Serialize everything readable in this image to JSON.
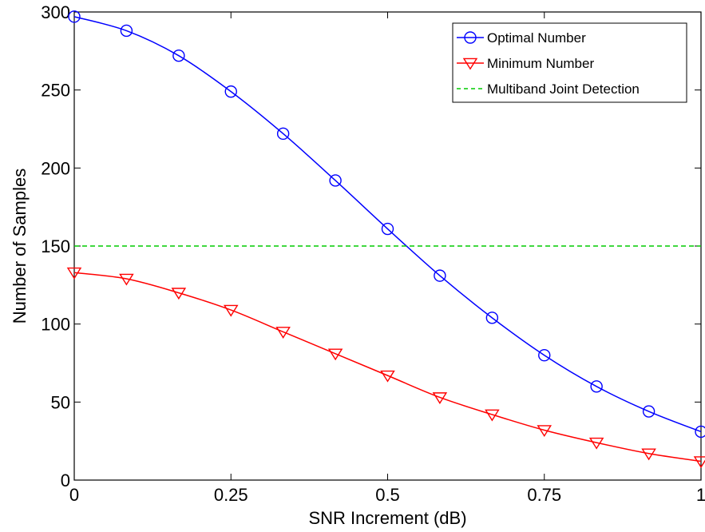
{
  "chart_data": {
    "type": "line",
    "title": "",
    "xlabel": "SNR Increment (dB)",
    "ylabel": "Number of Samples",
    "xlim": [
      0,
      1
    ],
    "ylim": [
      0,
      300
    ],
    "x_ticks": [
      0,
      0.25,
      0.5,
      0.75,
      1
    ],
    "x_tick_labels": [
      "0",
      "0.25",
      "0.5",
      "0.75",
      "1"
    ],
    "y_ticks": [
      0,
      50,
      100,
      150,
      200,
      250,
      300
    ],
    "y_tick_labels": [
      "0",
      "50",
      "100",
      "150",
      "200",
      "250",
      "300"
    ],
    "grid": false,
    "legend_position": "top-right",
    "series": [
      {
        "name": "Optimal Number",
        "color": "#0000ff",
        "marker": "circle",
        "line_style": "solid",
        "x": [
          0,
          0.0833,
          0.1667,
          0.25,
          0.3333,
          0.4167,
          0.5,
          0.5833,
          0.6667,
          0.75,
          0.8333,
          0.9167,
          1
        ],
        "values": [
          297,
          288,
          272,
          249,
          222,
          192,
          161,
          131,
          104,
          80,
          60,
          44,
          31
        ]
      },
      {
        "name": "Minimum Number",
        "color": "#ff0000",
        "marker": "triangle-down",
        "line_style": "solid",
        "x": [
          0,
          0.0833,
          0.1667,
          0.25,
          0.3333,
          0.4167,
          0.5,
          0.5833,
          0.6667,
          0.75,
          0.8333,
          0.9167,
          1
        ],
        "values": [
          133,
          129,
          120,
          109,
          95,
          81,
          67,
          53,
          42,
          32,
          24,
          17,
          12
        ]
      },
      {
        "name": "Multiband Joint Detection",
        "color": "#00cc00",
        "marker": "none",
        "line_style": "dashed",
        "x": [
          0,
          1
        ],
        "values": [
          150,
          150
        ]
      }
    ]
  }
}
